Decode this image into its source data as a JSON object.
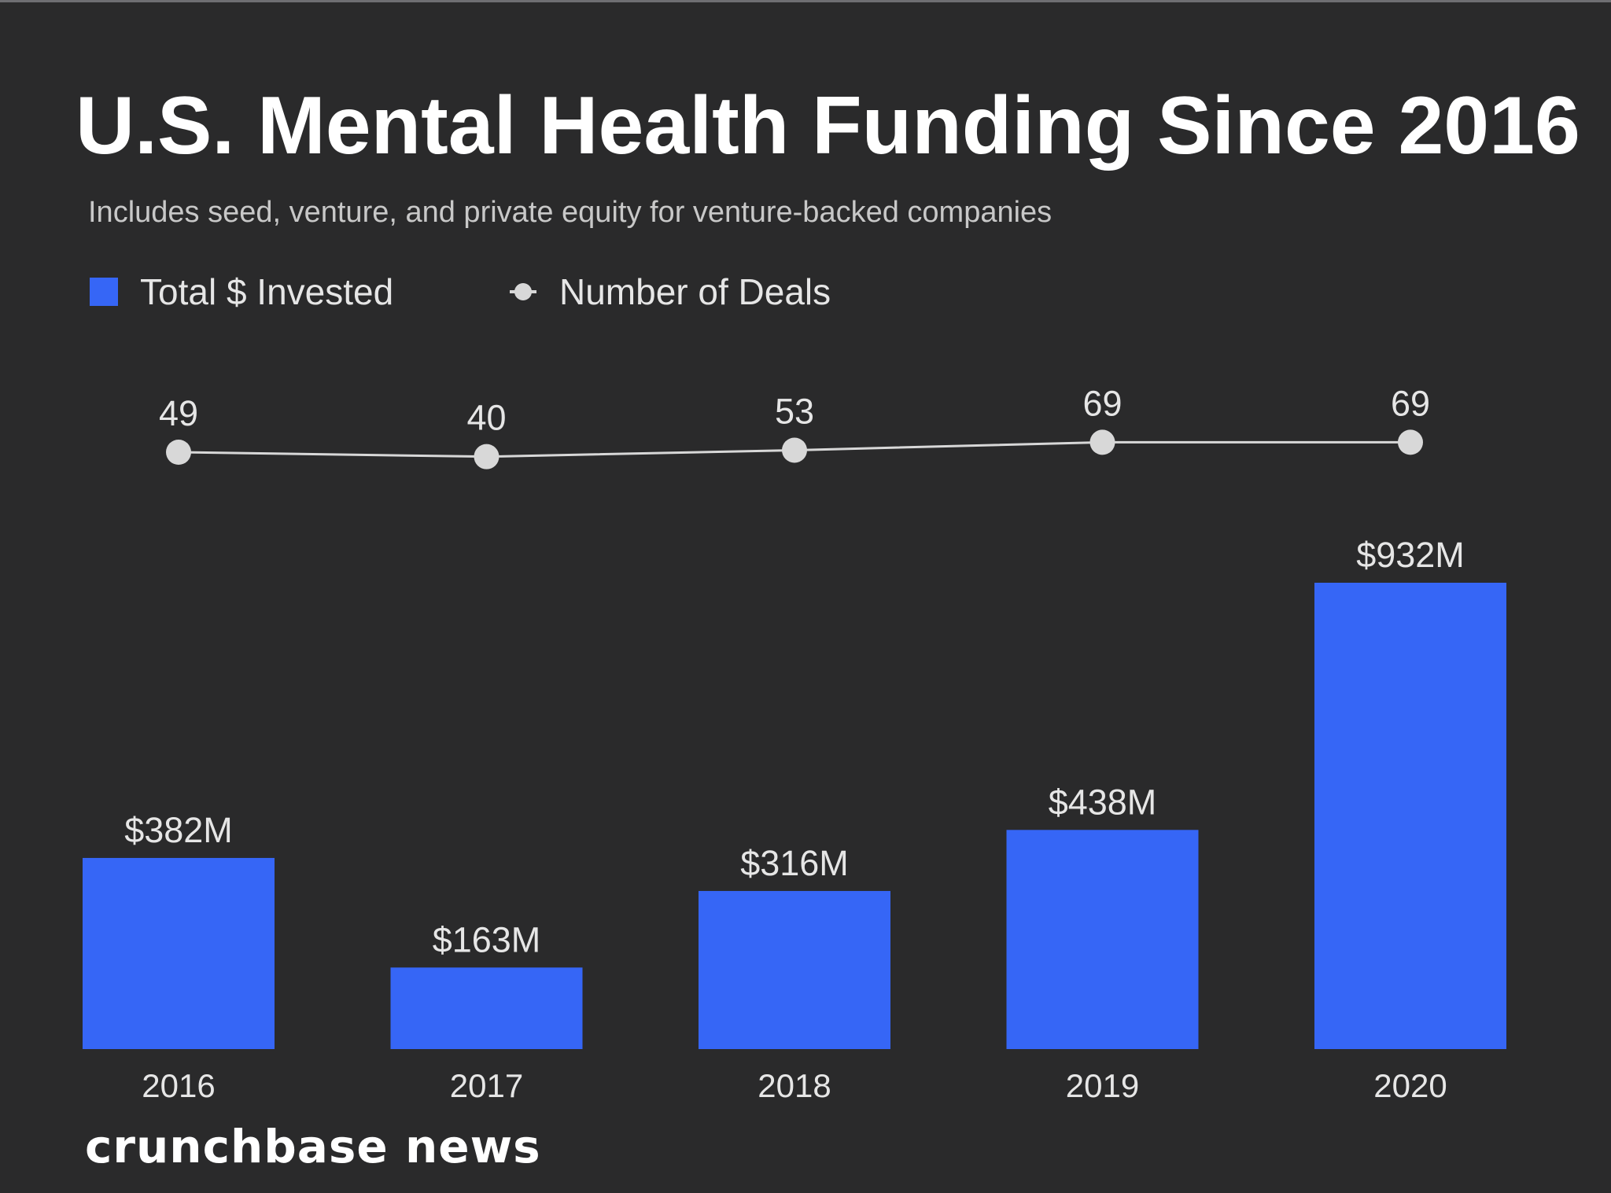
{
  "chart_data": {
    "type": "bar",
    "title": "U.S. Mental Health Funding Since 2016",
    "subtitle": "Includes seed, venture, and private equity for venture-backed companies",
    "categories": [
      "2016",
      "2017",
      "2018",
      "2019",
      "2020"
    ],
    "series": [
      {
        "name": "Total $ Invested",
        "type": "bar",
        "values": [
          382,
          163,
          316,
          438,
          932
        ],
        "labels": [
          "$382M",
          "$163M",
          "$316M",
          "$438M",
          "$932M"
        ],
        "color": "#3666f6"
      },
      {
        "name": "Number of Deals",
        "type": "line",
        "values": [
          49,
          40,
          53,
          69,
          69
        ],
        "labels": [
          "49",
          "40",
          "53",
          "69",
          "69"
        ],
        "color": "#d8d8d8"
      }
    ],
    "legend": {
      "placement": "top-left",
      "items": [
        "Total $ Invested",
        "Number of Deals"
      ]
    },
    "grid": false,
    "brand": "crunchbase news",
    "background_color": "#2a2a2b"
  }
}
